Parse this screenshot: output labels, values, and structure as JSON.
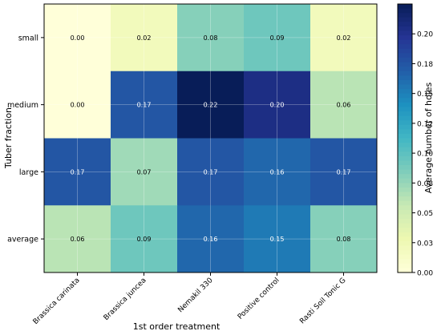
{
  "chart_data": {
    "type": "heatmap",
    "title": "",
    "xlabel": "1st order treatment",
    "ylabel": "Tuber fraction",
    "x_categories": [
      "Brassica carinata",
      "Brassica juncea",
      "Nemakil 330",
      "Positive control",
      "Rasti Soil Tonic G"
    ],
    "y_categories": [
      "small",
      "medium",
      "large",
      "average"
    ],
    "values": [
      [
        0.0,
        0.02,
        0.08,
        0.09,
        0.02
      ],
      [
        0.0,
        0.17,
        0.22,
        0.2,
        0.06
      ],
      [
        0.17,
        0.07,
        0.17,
        0.16,
        0.17
      ],
      [
        0.06,
        0.09,
        0.16,
        0.15,
        0.08
      ]
    ],
    "value_labels": [
      [
        "0.00",
        "0.02",
        "0.08",
        "0.09",
        "0.02"
      ],
      [
        "0.00",
        "0.17",
        "0.22",
        "0.20",
        "0.06"
      ],
      [
        "0.17",
        "0.07",
        "0.17",
        "0.16",
        "0.17"
      ],
      [
        "0.06",
        "0.09",
        "0.16",
        "0.15",
        "0.08"
      ]
    ],
    "colorbar": {
      "label": "Average number of holes",
      "range": [
        0,
        0.22
      ],
      "ticks": [
        "0.00",
        "0.03",
        "0.05",
        "0.08",
        "0.10",
        "0.12",
        "0.15",
        "0.18",
        "0.20"
      ],
      "colormap": "YlGnBu"
    },
    "grid": true
  }
}
